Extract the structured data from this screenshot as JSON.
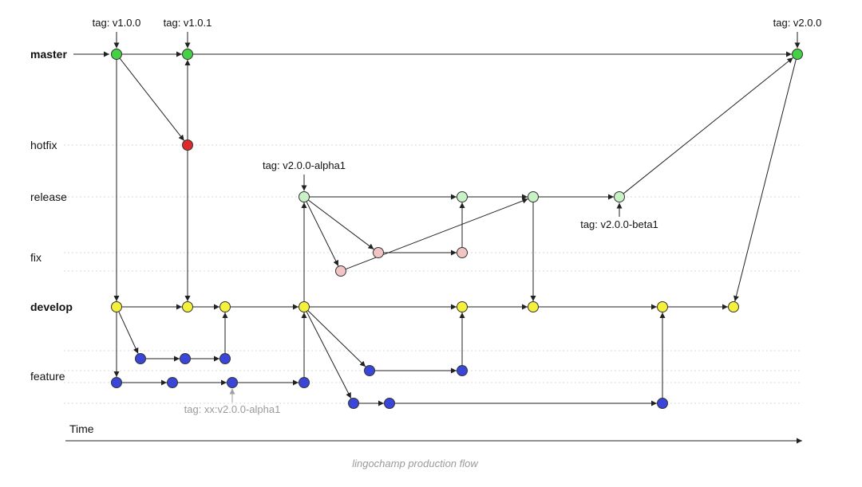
{
  "lanes": [
    {
      "id": "master",
      "label": "master",
      "bold": true
    },
    {
      "id": "hotfix",
      "label": "hotfix",
      "bold": false
    },
    {
      "id": "release",
      "label": "release",
      "bold": false
    },
    {
      "id": "fix",
      "label": "fix",
      "bold": false
    },
    {
      "id": "develop",
      "label": "develop",
      "bold": true
    },
    {
      "id": "feature",
      "label": "feature",
      "bold": false
    }
  ],
  "colors": {
    "master": "#44d144",
    "hotfix": "#dd2b2b",
    "release": "#c8f2c6",
    "fix": "#f2c4c4",
    "develop": "#f5f03c",
    "feature": "#3a46d8"
  },
  "commits": [
    {
      "id": "m1",
      "lane": "master"
    },
    {
      "id": "m2",
      "lane": "master"
    },
    {
      "id": "m3",
      "lane": "master"
    },
    {
      "id": "h1",
      "lane": "hotfix"
    },
    {
      "id": "r1",
      "lane": "release"
    },
    {
      "id": "r2",
      "lane": "release"
    },
    {
      "id": "r3",
      "lane": "release"
    },
    {
      "id": "r4",
      "lane": "release"
    },
    {
      "id": "fx1",
      "lane": "fix"
    },
    {
      "id": "fx2",
      "lane": "fix"
    },
    {
      "id": "fx3",
      "lane": "fix"
    },
    {
      "id": "d1",
      "lane": "develop"
    },
    {
      "id": "d2",
      "lane": "develop"
    },
    {
      "id": "d3",
      "lane": "develop"
    },
    {
      "id": "d4",
      "lane": "develop"
    },
    {
      "id": "d5",
      "lane": "develop"
    },
    {
      "id": "d6",
      "lane": "develop"
    },
    {
      "id": "d7",
      "lane": "develop"
    },
    {
      "id": "d8",
      "lane": "develop"
    },
    {
      "id": "fa1",
      "lane": "feature"
    },
    {
      "id": "fa2",
      "lane": "feature"
    },
    {
      "id": "fa3",
      "lane": "feature"
    },
    {
      "id": "fb1",
      "lane": "feature"
    },
    {
      "id": "fb2",
      "lane": "feature"
    },
    {
      "id": "fb3",
      "lane": "feature"
    },
    {
      "id": "fb4",
      "lane": "feature"
    },
    {
      "id": "fc1",
      "lane": "feature"
    },
    {
      "id": "fc2",
      "lane": "feature"
    },
    {
      "id": "fd1",
      "lane": "feature"
    },
    {
      "id": "fd2",
      "lane": "feature"
    },
    {
      "id": "fd3",
      "lane": "feature"
    }
  ],
  "edges": [
    [
      "m1",
      "m2"
    ],
    [
      "m2",
      "m3"
    ],
    [
      "m1",
      "h1"
    ],
    [
      "h1",
      "m2"
    ],
    [
      "m1",
      "d1"
    ],
    [
      "h1",
      "d2"
    ],
    [
      "d1",
      "d2"
    ],
    [
      "d2",
      "d3"
    ],
    [
      "d3",
      "d4"
    ],
    [
      "d4",
      "d5"
    ],
    [
      "d5",
      "d6"
    ],
    [
      "d6",
      "d7"
    ],
    [
      "d7",
      "d8"
    ],
    [
      "d1",
      "fa1"
    ],
    [
      "fa1",
      "fa2"
    ],
    [
      "fa2",
      "fa3"
    ],
    [
      "fa3",
      "d3"
    ],
    [
      "d1",
      "fb1"
    ],
    [
      "fb1",
      "fb2"
    ],
    [
      "fb2",
      "fb3"
    ],
    [
      "fb3",
      "fb4"
    ],
    [
      "fb4",
      "d4"
    ],
    [
      "d4",
      "r1"
    ],
    [
      "r1",
      "r2"
    ],
    [
      "r2",
      "r3"
    ],
    [
      "r3",
      "r4"
    ],
    [
      "r4",
      "m3"
    ],
    [
      "m3",
      "d8"
    ],
    [
      "r1",
      "fx1"
    ],
    [
      "fx1",
      "fx2"
    ],
    [
      "fx2",
      "r2"
    ],
    [
      "r1",
      "fx3"
    ],
    [
      "fx3",
      "r3"
    ],
    [
      "r3",
      "d6"
    ],
    [
      "d4",
      "fc1"
    ],
    [
      "fc1",
      "fc2"
    ],
    [
      "fc2",
      "d5"
    ],
    [
      "d4",
      "fd1"
    ],
    [
      "fd1",
      "fd2"
    ],
    [
      "fd2",
      "fd3"
    ],
    [
      "fd3",
      "d7"
    ]
  ],
  "tags": [
    {
      "commit": "m1",
      "label": "tag: v1.0.0",
      "side": "above",
      "muted": false
    },
    {
      "commit": "m2",
      "label": "tag: v1.0.1",
      "side": "above",
      "muted": false
    },
    {
      "commit": "m3",
      "label": "tag: v2.0.0",
      "side": "above",
      "muted": false
    },
    {
      "commit": "r1",
      "label": "tag: v2.0.0-alpha1",
      "side": "above",
      "muted": false
    },
    {
      "commit": "r4",
      "label": "tag: v2.0.0-beta1",
      "side": "below",
      "muted": false
    },
    {
      "commit": "fb3",
      "label": "tag: xx:v2.0.0-alpha1",
      "side": "below",
      "muted": true
    }
  ],
  "axis": {
    "label": "Time"
  },
  "caption": "lingochamp production flow"
}
